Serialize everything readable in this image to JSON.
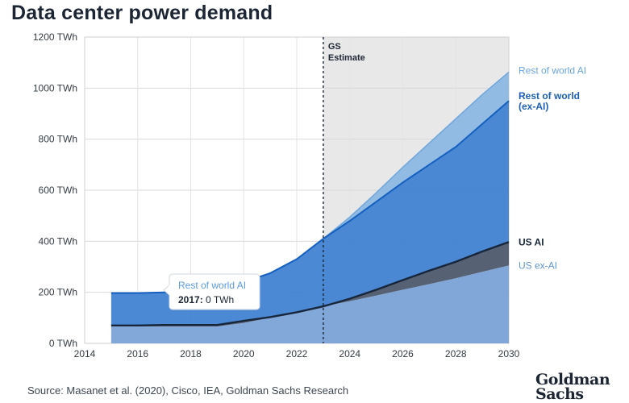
{
  "title": "Data center power demand",
  "source": "Source: Masanet et al. (2020), Cisco, IEA, Goldman Sachs Research",
  "logo": "Goldman Sachs",
  "chart_data": {
    "type": "area",
    "title": "Data center power demand",
    "ylim": [
      0,
      1200
    ],
    "xlim": [
      2014,
      2030
    ],
    "y_ticks": [
      {
        "value": 0,
        "label": "0 TWh"
      },
      {
        "value": 200,
        "label": "200 TWh"
      },
      {
        "value": 400,
        "label": "400 TWh"
      },
      {
        "value": 600,
        "label": "600 TWh"
      },
      {
        "value": 800,
        "label": "800 TWh"
      },
      {
        "value": 1000,
        "label": "1000 TWh"
      },
      {
        "value": 1200,
        "label": "1200 TWh"
      }
    ],
    "x_ticks": [
      2014,
      2016,
      2018,
      2020,
      2022,
      2024,
      2026,
      2028,
      2030
    ],
    "grid": true,
    "estimate": {
      "start": 2023,
      "label_line1": "GS",
      "label_line2": "Estimate"
    },
    "x": [
      2015,
      2016,
      2017,
      2018,
      2019,
      2020,
      2021,
      2022,
      2023,
      2024,
      2025,
      2026,
      2027,
      2028,
      2029,
      2030
    ],
    "series": [
      {
        "name": "US ex-AI",
        "color": "#7ba3d8",
        "values": [
          66,
          66,
          66,
          66,
          66,
          80,
          100,
          122,
          145,
          165,
          187,
          210,
          232,
          255,
          280,
          305
        ]
      },
      {
        "name": "US AI",
        "color": "#4e5a6d",
        "line_color": "#17263a",
        "values": [
          70,
          70,
          72,
          72,
          72,
          88,
          103,
          122,
          145,
          175,
          210,
          248,
          285,
          320,
          360,
          397
        ]
      },
      {
        "name": "Rest of world (ex-AI)",
        "color": "#3d7fd1",
        "line_color": "#1460c0",
        "values": [
          197,
          197,
          200,
          200,
          218,
          240,
          275,
          330,
          410,
          480,
          555,
          630,
          700,
          770,
          860,
          950
        ]
      },
      {
        "name": "Rest of world AI",
        "color": "#8cb8e3",
        "line_color": "#6fa6dc",
        "values": [
          197,
          197,
          200,
          200,
          218,
          240,
          275,
          330,
          410,
          495,
          590,
          690,
          785,
          880,
          975,
          1063
        ]
      }
    ],
    "tooltip": {
      "series": "Rest of world AI",
      "year": "2017:",
      "value": " 0 TWh"
    }
  }
}
